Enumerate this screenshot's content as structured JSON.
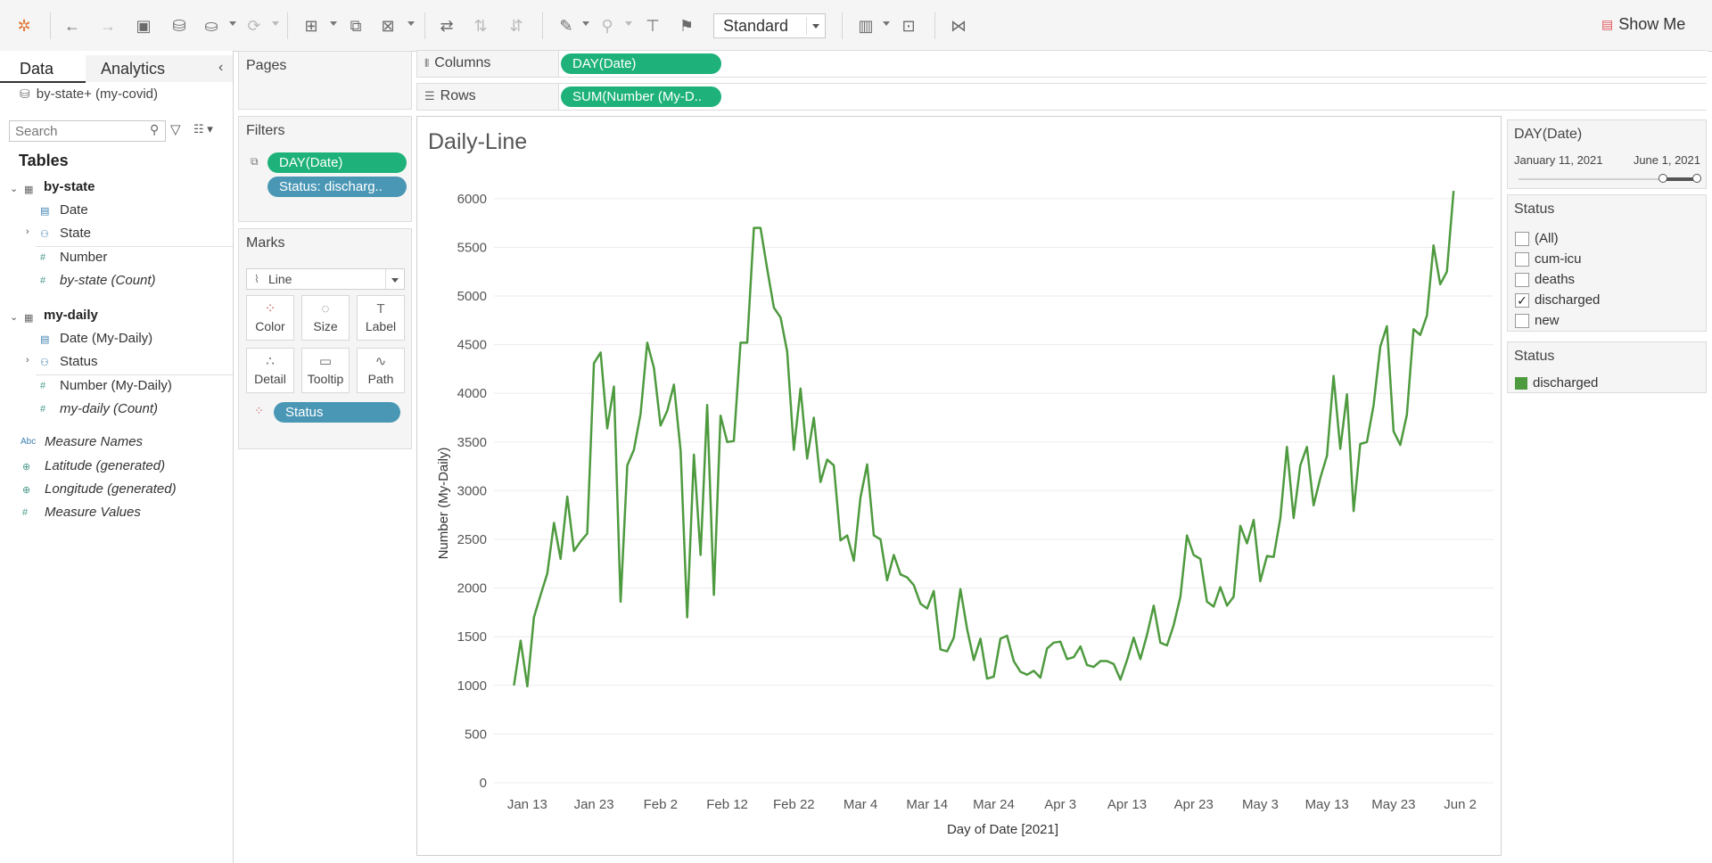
{
  "toolbar": {
    "view_size": "Standard",
    "show_me_label": "Show Me"
  },
  "data_pane": {
    "tabs": [
      "Data",
      "Analytics"
    ],
    "datasource": "by-state+ (my-covid)",
    "search_placeholder": "Search",
    "tables_heading": "Tables",
    "tables": [
      {
        "name": "by-state",
        "fields": [
          "Date",
          "State",
          "Number",
          "by-state (Count)"
        ]
      },
      {
        "name": "my-daily",
        "fields": [
          "Date (My-Daily)",
          "Status",
          "Number (My-Daily)",
          "my-daily (Count)"
        ]
      }
    ],
    "extra_fields": [
      "Measure Names",
      "Latitude (generated)",
      "Longitude (generated)",
      "Measure Values"
    ],
    "abc_icon": "Abc"
  },
  "pages_title": "Pages",
  "filters": {
    "title": "Filters",
    "pills": [
      "DAY(Date)",
      "Status: discharg.."
    ]
  },
  "marks": {
    "title": "Marks",
    "type": "Line",
    "buttons": [
      "Color",
      "Size",
      "Label",
      "Detail",
      "Tooltip",
      "Path"
    ],
    "status_pill": "Status"
  },
  "shelves": {
    "columns_label": "Columns",
    "columns_pill": "DAY(Date)",
    "rows_label": "Rows",
    "rows_pill": "SUM(Number (My-D.."
  },
  "viz_title": "Daily-Line",
  "date_filter": {
    "title": "DAY(Date)",
    "start": "January 11, 2021",
    "end": "June 1, 2021",
    "selected_from": 0.81,
    "selected_to": 1.0
  },
  "status_filter": {
    "title": "Status",
    "options": [
      {
        "label": "(All)",
        "checked": false
      },
      {
        "label": "cum-icu",
        "checked": false
      },
      {
        "label": "deaths",
        "checked": false
      },
      {
        "label": "discharged",
        "checked": true
      },
      {
        "label": "new",
        "checked": false
      }
    ]
  },
  "legend": {
    "title": "Status",
    "item": "discharged",
    "color": "#4e9a3f"
  },
  "chart_data": {
    "type": "line",
    "xlabel": "Day of Date [2021]",
    "ylabel": "Number (My-Daily)",
    "x_ticks": [
      "Jan 13",
      "Jan 23",
      "Feb 2",
      "Feb 12",
      "Feb 22",
      "Mar 4",
      "Mar 14",
      "Mar 24",
      "Apr 3",
      "Apr 13",
      "Apr 23",
      "May 3",
      "May 13",
      "May 23",
      "Jun 2"
    ],
    "y_ticks": [
      0,
      500,
      1000,
      1500,
      2000,
      2500,
      3000,
      3500,
      4000,
      4500,
      5000,
      5500,
      6000
    ],
    "ylim": [
      0,
      6200
    ],
    "xlim": [
      "2021-01-08",
      "2021-06-07"
    ],
    "grid": true,
    "series": [
      {
        "name": "discharged",
        "color": "#4e9a3f",
        "start_date": "2021-01-11",
        "values": [
          1000,
          1460,
          990,
          1700,
          1930,
          2150,
          2670,
          2300,
          2940,
          2380,
          2480,
          2560,
          4310,
          4420,
          3640,
          4070,
          1860,
          3260,
          3420,
          3790,
          4520,
          4260,
          3670,
          3820,
          4090,
          3410,
          1700,
          3370,
          2340,
          3880,
          1930,
          3770,
          3500,
          3510,
          4520,
          4520,
          5700,
          5700,
          5280,
          4880,
          4780,
          4430,
          3420,
          4050,
          3330,
          3750,
          3090,
          3320,
          3260,
          2490,
          2540,
          2280,
          2930,
          3270,
          2540,
          2500,
          2080,
          2340,
          2140,
          2110,
          2030,
          1840,
          1790,
          1970,
          1370,
          1350,
          1490,
          1990,
          1580,
          1260,
          1480,
          1070,
          1090,
          1480,
          1510,
          1250,
          1140,
          1110,
          1150,
          1080,
          1380,
          1440,
          1450,
          1270,
          1290,
          1400,
          1210,
          1190,
          1250,
          1250,
          1220,
          1060,
          1260,
          1490,
          1270,
          1520,
          1820,
          1440,
          1410,
          1620,
          1910,
          2540,
          2340,
          2300,
          1860,
          1810,
          2010,
          1820,
          1910,
          2640,
          2460,
          2700,
          2070,
          2330,
          2320,
          2720,
          3450,
          2720,
          3260,
          3450,
          2850,
          3130,
          3360,
          4180,
          3430,
          3990,
          2790,
          3480,
          3500,
          3880,
          4480,
          4690,
          3610,
          3470,
          3780,
          4660,
          4600,
          4800,
          5520,
          5120,
          5250,
          6080
        ]
      }
    ]
  }
}
